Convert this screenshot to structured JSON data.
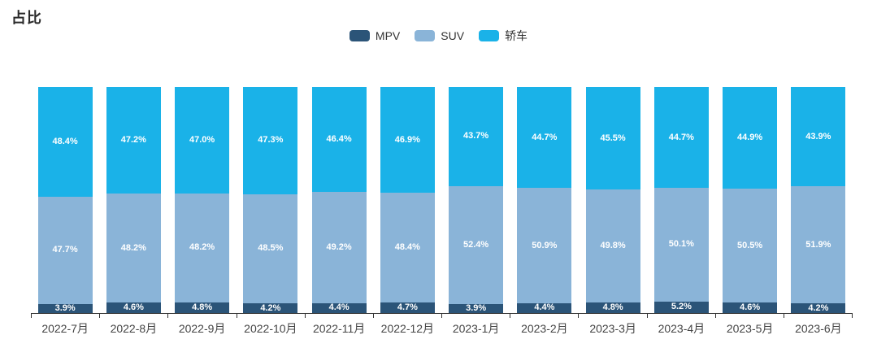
{
  "header": {
    "title": "占比"
  },
  "chart_data": {
    "type": "bar",
    "variant": "stacked-percentage",
    "title": "占比",
    "categories": [
      "2022-7月",
      "2022-8月",
      "2022-9月",
      "2022-10月",
      "2022-11月",
      "2022-12月",
      "2023-1月",
      "2023-2月",
      "2023-3月",
      "2023-4月",
      "2023-5月",
      "2023-6月"
    ],
    "series": [
      {
        "name": "MPV",
        "color": "#2b5478",
        "values": [
          3.9,
          4.6,
          4.8,
          4.2,
          4.4,
          4.7,
          3.9,
          4.4,
          4.8,
          5.2,
          4.6,
          4.2
        ]
      },
      {
        "name": "SUV",
        "color": "#8ab4d8",
        "values": [
          47.7,
          48.2,
          48.2,
          48.5,
          49.2,
          48.4,
          52.4,
          50.9,
          49.8,
          50.1,
          50.5,
          51.9
        ]
      },
      {
        "name": "轿车",
        "color": "#1ab2e8",
        "values": [
          48.4,
          47.2,
          47.0,
          47.3,
          46.4,
          46.9,
          43.7,
          44.7,
          45.5,
          44.7,
          44.9,
          43.9
        ]
      }
    ],
    "value_suffix": "%",
    "ylim": [
      0,
      100
    ],
    "grid": false,
    "legend_position": "top-center",
    "stack_order_bottom_to_top": [
      "MPV",
      "SUV",
      "轿车"
    ],
    "label_color": "#ffffff",
    "axis_color": "#333333",
    "tick_label_color": "#444444",
    "background_color": "#ffffff"
  }
}
